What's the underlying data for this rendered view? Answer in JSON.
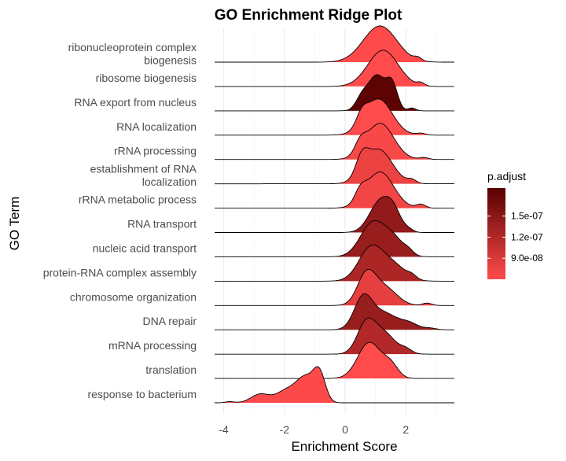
{
  "chart_data": {
    "type": "ridgeline",
    "title": "GO Enrichment Ridge Plot",
    "xlabel": "Enrichment Score",
    "ylabel": "GO Term",
    "xlim": [
      -4.3,
      3.6
    ],
    "x_ticks": [
      -4,
      -2,
      0,
      2
    ],
    "x_tick_labels": [
      "-4",
      "-2",
      "0",
      "2"
    ],
    "grid": true,
    "legend": {
      "title": "p.adjust",
      "placement": "right",
      "range": [
        6e-08,
        1.9e-07
      ],
      "ticks": [
        9e-08,
        1.2e-07,
        1.5e-07
      ],
      "tick_labels": [
        "9.0e-08",
        "1.2e-07",
        "1.5e-07"
      ],
      "color_low": "#ff4b4b",
      "color_high": "#580000"
    },
    "series": [
      {
        "term": "ribonucleoprotein complex\nbiogenesis",
        "p_adjust": 6.1e-08,
        "peaks": [
          [
            1.15,
            0.55,
            1.0
          ],
          [
            2.4,
            0.12,
            0.08
          ]
        ]
      },
      {
        "term": "ribosome biogenesis",
        "p_adjust": 6e-08,
        "peaks": [
          [
            1.25,
            0.5,
            1.0
          ],
          [
            2.5,
            0.12,
            0.08
          ]
        ]
      },
      {
        "term": "RNA export from nucleus",
        "p_adjust": 1.85e-07,
        "peaks": [
          [
            1.05,
            0.28,
            1.0
          ],
          [
            1.55,
            0.18,
            0.7
          ],
          [
            0.55,
            0.2,
            0.35
          ],
          [
            2.2,
            0.12,
            0.08
          ]
        ]
      },
      {
        "term": "RNA localization",
        "p_adjust": 6e-08,
        "peaks": [
          [
            1.1,
            0.45,
            1.0
          ],
          [
            0.55,
            0.18,
            0.3
          ],
          [
            2.5,
            0.15,
            0.05
          ]
        ]
      },
      {
        "term": "rRNA processing",
        "p_adjust": 6.5e-08,
        "peaks": [
          [
            1.15,
            0.45,
            1.0
          ],
          [
            0.5,
            0.18,
            0.3
          ],
          [
            2.6,
            0.15,
            0.05
          ]
        ]
      },
      {
        "term": "establishment of RNA\nlocalization",
        "p_adjust": 7.5e-08,
        "peaks": [
          [
            1.1,
            0.45,
            1.0
          ],
          [
            0.55,
            0.2,
            0.5
          ],
          [
            2.2,
            0.15,
            0.1
          ]
        ]
      },
      {
        "term": "rRNA metabolic process",
        "p_adjust": 7e-08,
        "peaks": [
          [
            1.15,
            0.45,
            1.0
          ],
          [
            0.5,
            0.18,
            0.3
          ],
          [
            2.5,
            0.15,
            0.1
          ]
        ]
      },
      {
        "term": "RNA transport",
        "p_adjust": 1.45e-07,
        "peaks": [
          [
            1.15,
            0.35,
            1.0
          ],
          [
            1.6,
            0.25,
            0.55
          ],
          [
            2.1,
            0.15,
            0.08
          ]
        ]
      },
      {
        "term": "nucleic acid transport",
        "p_adjust": 1.4e-07,
        "peaks": [
          [
            0.9,
            0.4,
            1.0
          ],
          [
            1.6,
            0.35,
            0.5
          ],
          [
            2.1,
            0.15,
            0.1
          ]
        ]
      },
      {
        "term": "protein-RNA complex assembly",
        "p_adjust": 1.25e-07,
        "peaks": [
          [
            0.85,
            0.4,
            1.0
          ],
          [
            1.6,
            0.4,
            0.45
          ],
          [
            2.2,
            0.15,
            0.1
          ]
        ]
      },
      {
        "term": "chromosome organization",
        "p_adjust": 8e-08,
        "peaks": [
          [
            0.7,
            0.3,
            1.0
          ],
          [
            1.3,
            0.4,
            0.6
          ],
          [
            2.7,
            0.15,
            0.08
          ]
        ]
      },
      {
        "term": "DNA repair",
        "p_adjust": 1.4e-07,
        "peaks": [
          [
            0.6,
            0.3,
            1.0
          ],
          [
            1.3,
            0.4,
            0.5
          ],
          [
            2.1,
            0.3,
            0.2
          ],
          [
            2.8,
            0.2,
            0.05
          ]
        ]
      },
      {
        "term": "mRNA processing",
        "p_adjust": 1.2e-07,
        "peaks": [
          [
            0.7,
            0.3,
            1.0
          ],
          [
            1.3,
            0.35,
            0.65
          ],
          [
            2.0,
            0.2,
            0.15
          ]
        ]
      },
      {
        "term": "translation",
        "p_adjust": 6e-08,
        "peaks": [
          [
            0.8,
            0.38,
            1.0
          ],
          [
            1.5,
            0.25,
            0.35
          ]
        ]
      },
      {
        "term": "response to bacterium",
        "p_adjust": 6.2e-08,
        "peaks": [
          [
            -0.85,
            0.2,
            1.0
          ],
          [
            -1.3,
            0.28,
            0.8
          ],
          [
            -1.9,
            0.35,
            0.45
          ],
          [
            -2.8,
            0.3,
            0.3
          ],
          [
            -3.8,
            0.15,
            0.04
          ]
        ]
      }
    ]
  }
}
